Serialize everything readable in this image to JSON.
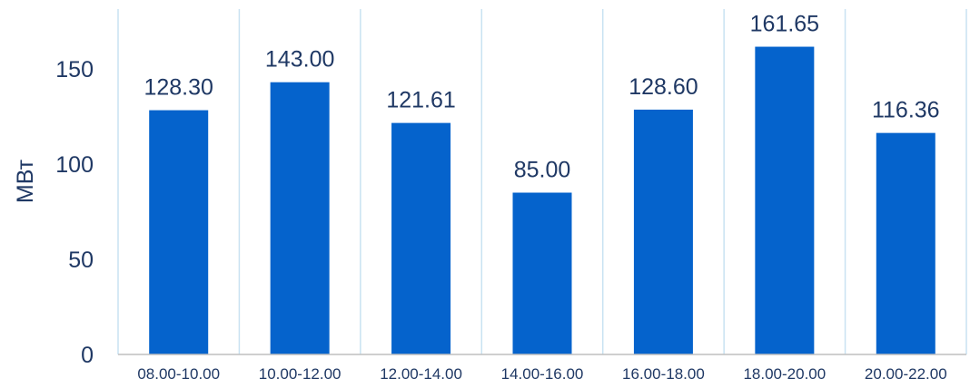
{
  "chart_data": {
    "type": "bar",
    "title": "",
    "xlabel": "",
    "ylabel": "МВт",
    "ylim": [
      0,
      175
    ],
    "yticks": [
      0,
      50,
      100,
      150
    ],
    "grid": "vertical-category-dividers",
    "categories": [
      "08.00-10.00",
      "10.00-12.00",
      "12.00-14.00",
      "14.00-16.00",
      "16.00-18.00",
      "18.00-20.00",
      "20.00-22.00"
    ],
    "values": [
      128.3,
      143.0,
      121.61,
      85.0,
      128.6,
      161.65,
      116.36
    ],
    "data_labels": [
      "128.30",
      "143.00",
      "121.61",
      "85.00",
      "128.60",
      "161.65",
      "116.36"
    ],
    "colors": {
      "bar": "#0563cc",
      "text": "#1f3864",
      "grid": "#c9e2f2",
      "axis": "#bfbfbf"
    }
  }
}
